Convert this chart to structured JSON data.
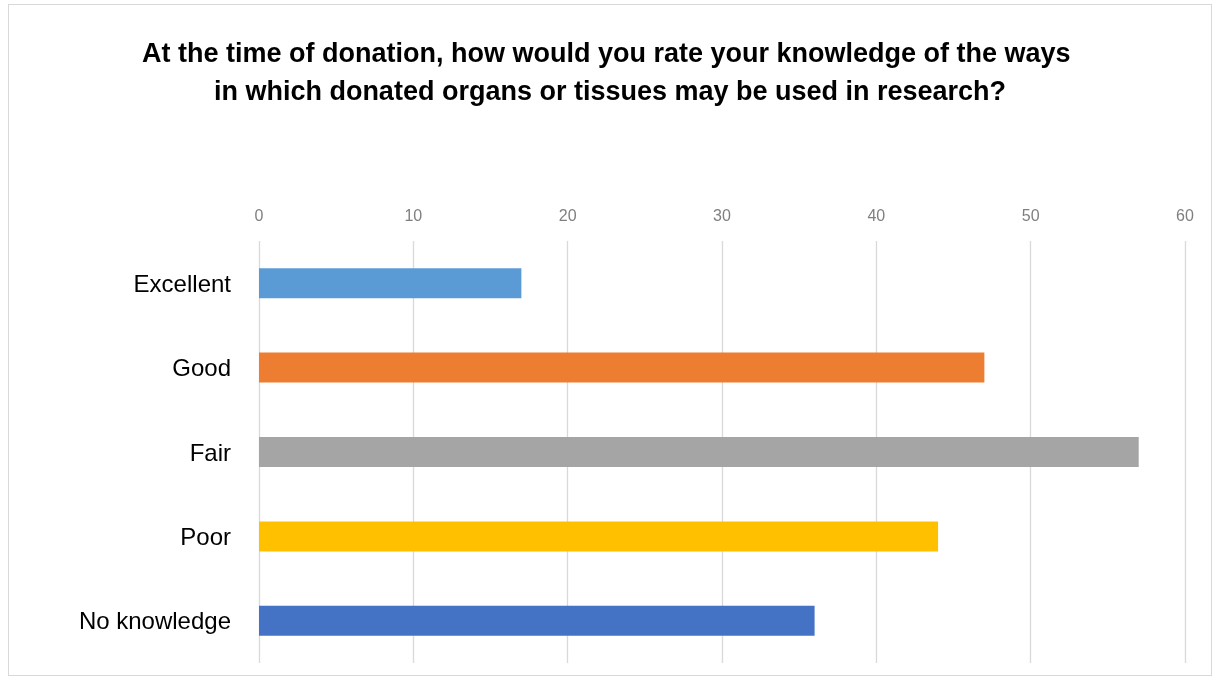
{
  "chart_data": {
    "type": "bar",
    "orientation": "horizontal",
    "title": "At the time of donation, how would you rate your knowledge of the ways in which donated organs or tissues may be used in research?",
    "categories": [
      "Excellent",
      "Good",
      "Fair",
      "Poor",
      "No knowledge"
    ],
    "values": [
      17,
      47,
      57,
      44,
      36
    ],
    "colors": [
      "#5b9bd5",
      "#ed7d31",
      "#a5a5a5",
      "#ffc000",
      "#4472c4"
    ],
    "xlim": [
      0,
      60
    ],
    "xticks": [
      0,
      10,
      20,
      30,
      40,
      50,
      60
    ],
    "grid": "x"
  }
}
